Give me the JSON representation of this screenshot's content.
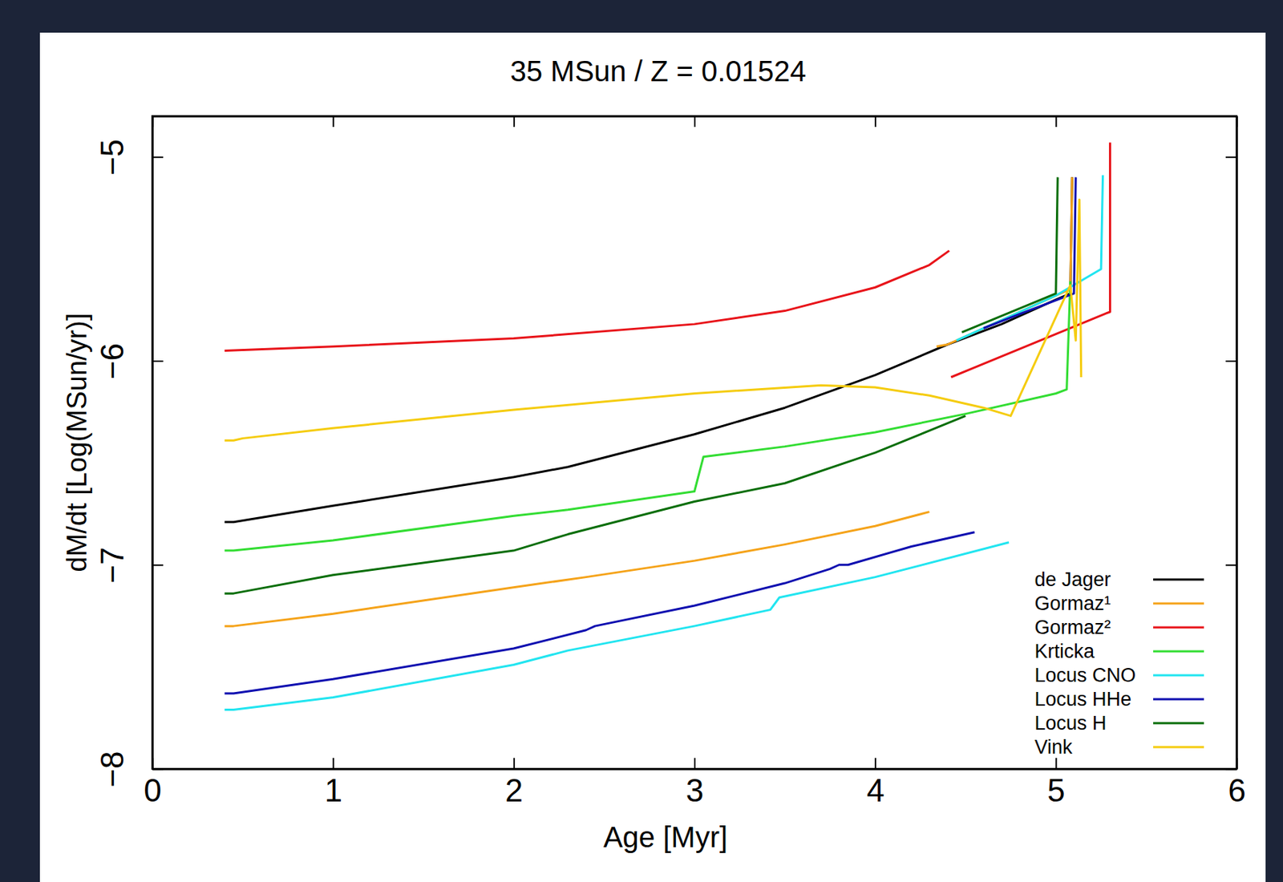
{
  "chart_data": {
    "type": "line",
    "title": "35 MSun / Z = 0.01524",
    "x_label": "Age [Myr]",
    "y_label": "dM/dt [Log(MSun/yr)]",
    "xlim": [
      0,
      6
    ],
    "xticks": [
      0,
      1,
      2,
      3,
      4,
      5,
      6
    ],
    "ylim": [
      -8,
      -4.8
    ],
    "yticks": [
      {
        "value": -8,
        "label": "−8"
      },
      {
        "value": -7,
        "label": "−7"
      },
      {
        "value": -6,
        "label": "−6"
      },
      {
        "value": -5,
        "label": "−5"
      }
    ],
    "grid": false,
    "legend": "lower right",
    "series": [
      {
        "name": "de Jager",
        "color": "#000000",
        "x": [
          0.4,
          0.45,
          1.0,
          2.0,
          2.3,
          3.0,
          3.5,
          4.0,
          4.4,
          4.7,
          5.0,
          5.08,
          5.09
        ],
        "values": [
          -6.79,
          -6.79,
          -6.71,
          -6.57,
          -6.52,
          -6.36,
          -6.23,
          -6.07,
          -5.92,
          -5.82,
          -5.7,
          -5.67,
          -5.1
        ]
      },
      {
        "name": "Gormaz¹",
        "color": "#f5a31a",
        "x": [
          0.4,
          0.45,
          1.0,
          2.0,
          2.4,
          3.0,
          3.5,
          4.0,
          4.3,
          null,
          4.34,
          4.4,
          4.7,
          5.05,
          5.08,
          5.09
        ],
        "values": [
          -7.3,
          -7.3,
          -7.24,
          -7.11,
          -7.06,
          -6.98,
          -6.9,
          -6.81,
          -6.74,
          null,
          -5.93,
          -5.92,
          -5.8,
          -5.66,
          -5.65,
          -5.1
        ]
      },
      {
        "name": "Gormaz²",
        "color": "#e8141a",
        "x": [
          0.4,
          1.0,
          2.0,
          3.0,
          3.5,
          4.0,
          4.3,
          4.41,
          null,
          4.42,
          5.27,
          5.3,
          5.3
        ],
        "values": [
          -5.95,
          -5.93,
          -5.89,
          -5.82,
          -5.755,
          -5.64,
          -5.53,
          -5.46,
          null,
          -6.08,
          -5.77,
          -5.76,
          -4.93
        ]
      },
      {
        "name": "Krticka",
        "color": "#33dd33",
        "x": [
          0.4,
          0.45,
          1.0,
          2.0,
          2.3,
          3.0,
          3.05,
          3.5,
          4.0,
          4.5,
          5.0,
          5.06,
          5.08
        ],
        "values": [
          -6.93,
          -6.93,
          -6.88,
          -6.76,
          -6.73,
          -6.64,
          -6.47,
          -6.42,
          -6.35,
          -6.26,
          -6.16,
          -6.14,
          -5.61
        ]
      },
      {
        "name": "Locus CNO",
        "color": "#22e5f0",
        "x": [
          0.4,
          0.45,
          1.0,
          2.0,
          2.3,
          3.0,
          3.42,
          3.47,
          4.0,
          4.74,
          null,
          4.45,
          4.8,
          5.0,
          5.25,
          5.26
        ],
        "values": [
          -7.71,
          -7.71,
          -7.65,
          -7.49,
          -7.42,
          -7.3,
          -7.22,
          -7.16,
          -7.06,
          -6.89,
          null,
          -5.9,
          -5.76,
          -5.68,
          -5.55,
          -5.09
        ]
      },
      {
        "name": "Locus HHe",
        "color": "#1010b0",
        "x": [
          0.4,
          0.45,
          1.0,
          2.0,
          2.4,
          2.45,
          3.0,
          3.5,
          3.75,
          3.8,
          3.85,
          4.2,
          4.55,
          null,
          4.6,
          4.8,
          5.1,
          5.11
        ],
        "values": [
          -7.63,
          -7.63,
          -7.56,
          -7.41,
          -7.32,
          -7.3,
          -7.2,
          -7.09,
          -7.02,
          -7.0,
          -7.0,
          -6.91,
          -6.84,
          null,
          -5.84,
          -5.77,
          -5.67,
          -5.1
        ]
      },
      {
        "name": "Locus H",
        "color": "#0a6e0a",
        "x": [
          0.4,
          0.45,
          1.0,
          2.0,
          2.3,
          3.0,
          3.5,
          4.0,
          4.5,
          null,
          4.48,
          5.0,
          5.01
        ],
        "values": [
          -7.14,
          -7.14,
          -7.05,
          -6.93,
          -6.85,
          -6.69,
          -6.6,
          -6.45,
          -6.27,
          null,
          -5.86,
          -5.67,
          -5.1
        ]
      },
      {
        "name": "Vink",
        "color": "#f5cc10",
        "x": [
          0.4,
          0.45,
          0.5,
          1.0,
          2.0,
          3.0,
          3.7,
          4.0,
          4.3,
          4.6,
          4.75,
          5.08,
          5.11,
          5.13,
          5.14
        ],
        "values": [
          -6.39,
          -6.39,
          -6.38,
          -6.33,
          -6.24,
          -6.16,
          -6.12,
          -6.13,
          -6.17,
          -6.23,
          -6.27,
          -5.63,
          -5.9,
          -5.21,
          -6.08
        ]
      }
    ]
  }
}
